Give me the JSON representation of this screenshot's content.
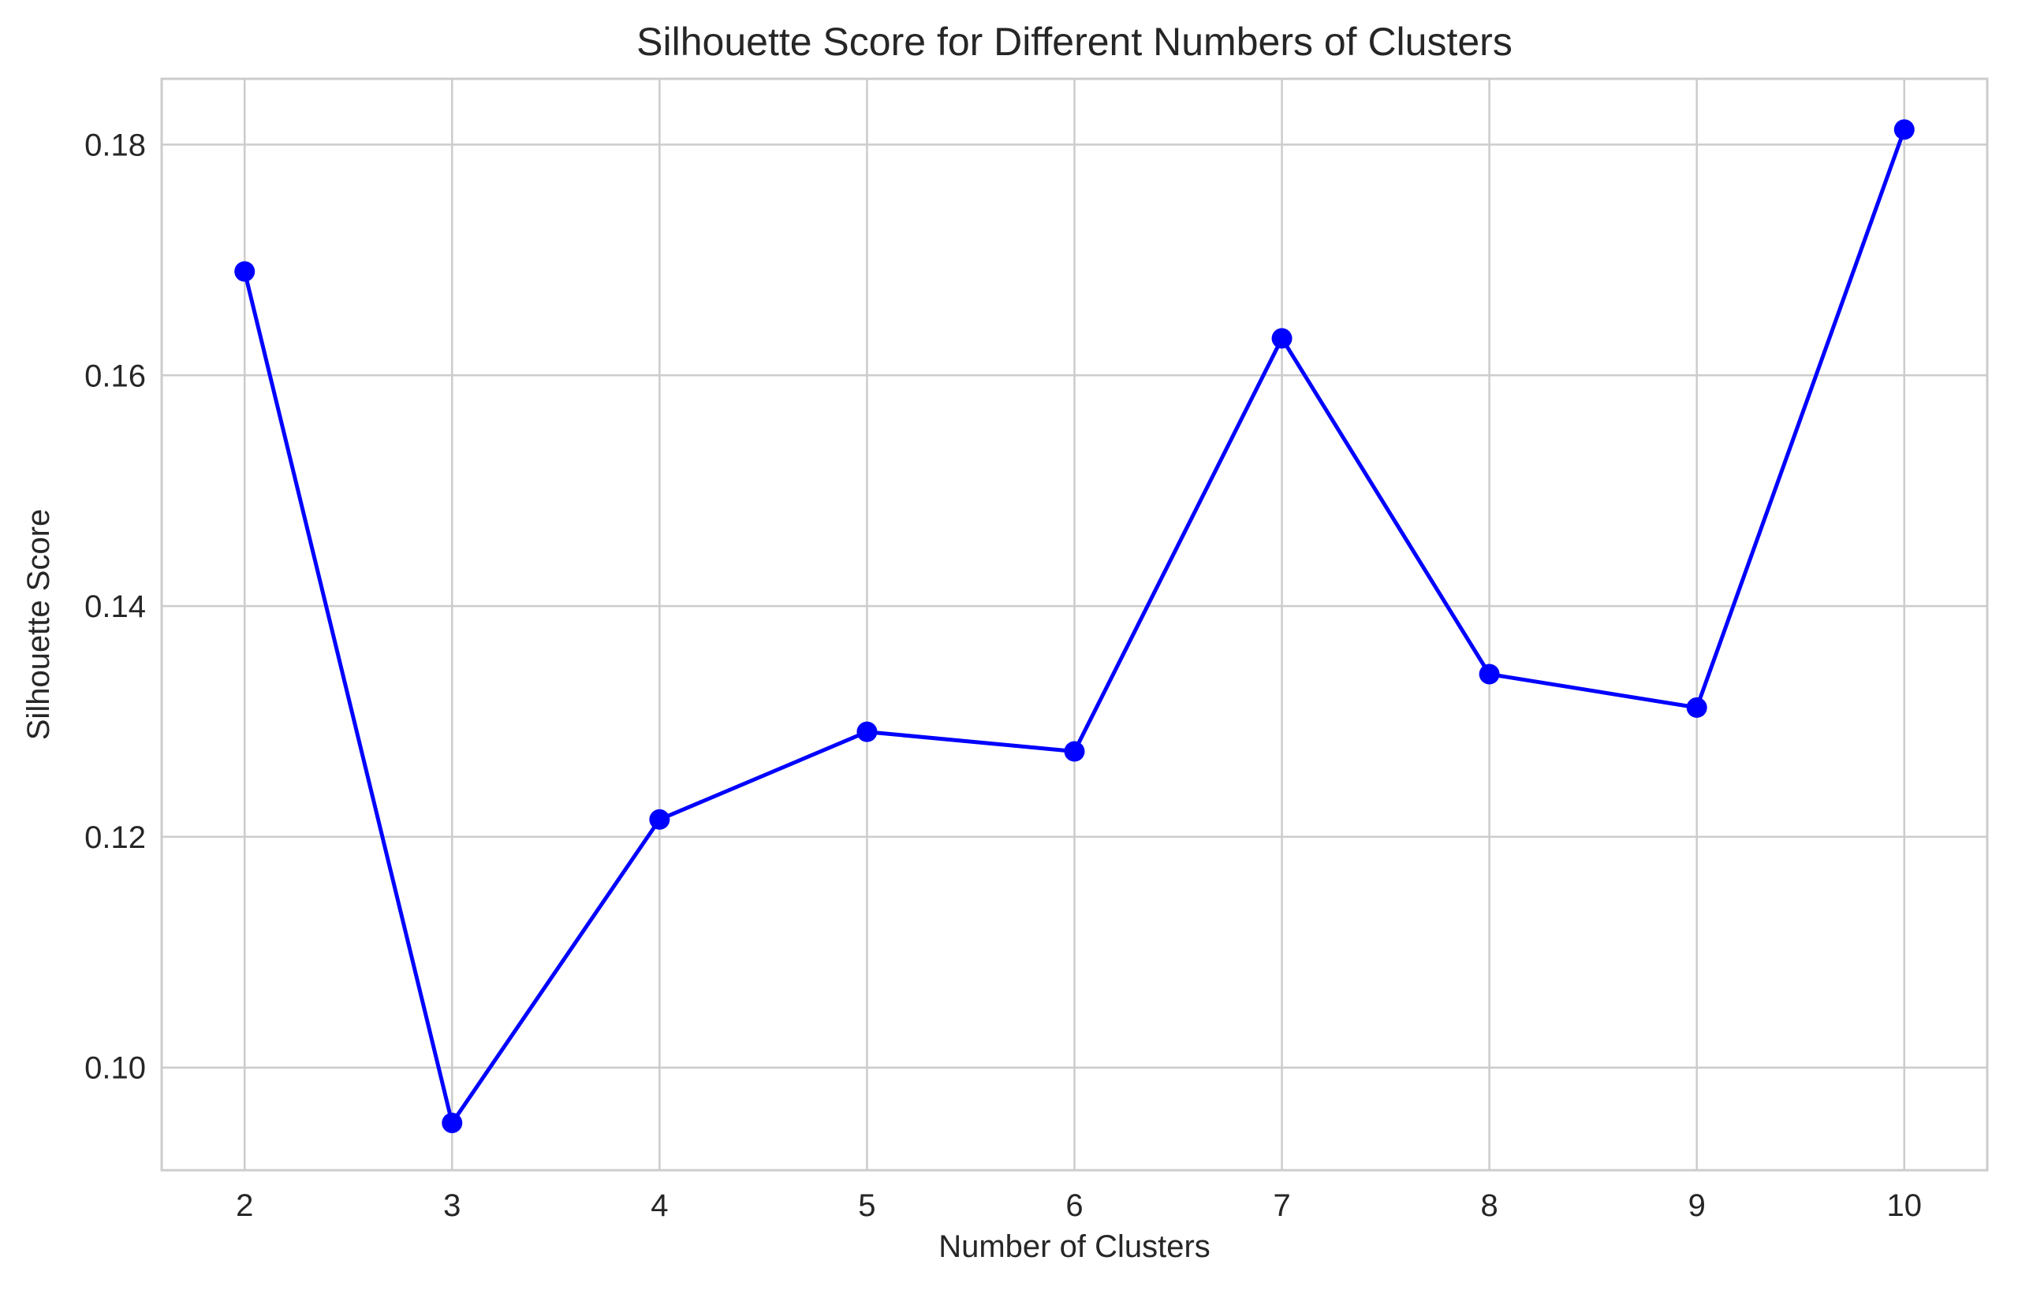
{
  "chart_data": {
    "type": "line",
    "title": "Silhouette Score for Different Numbers of Clusters",
    "xlabel": "Number of Clusters",
    "ylabel": "Silhouette Score",
    "x": [
      2,
      3,
      4,
      5,
      6,
      7,
      8,
      9,
      10
    ],
    "x_tick_labels": [
      "2",
      "3",
      "4",
      "5",
      "6",
      "7",
      "8",
      "9",
      "10"
    ],
    "y_ticks": [
      0.1,
      0.12,
      0.14,
      0.16,
      0.18
    ],
    "y_tick_labels": [
      "0.10",
      "0.12",
      "0.14",
      "0.16",
      "0.18"
    ],
    "series": [
      {
        "values": [
          0.169,
          0.0952,
          0.1215,
          0.1291,
          0.1274,
          0.1632,
          0.1341,
          0.1312,
          0.1813
        ],
        "color": "#0000ff",
        "marker": "circle"
      }
    ],
    "xlim": [
      1.6,
      10.4
    ],
    "ylim": [
      0.0911,
      0.1857
    ],
    "grid": true
  }
}
